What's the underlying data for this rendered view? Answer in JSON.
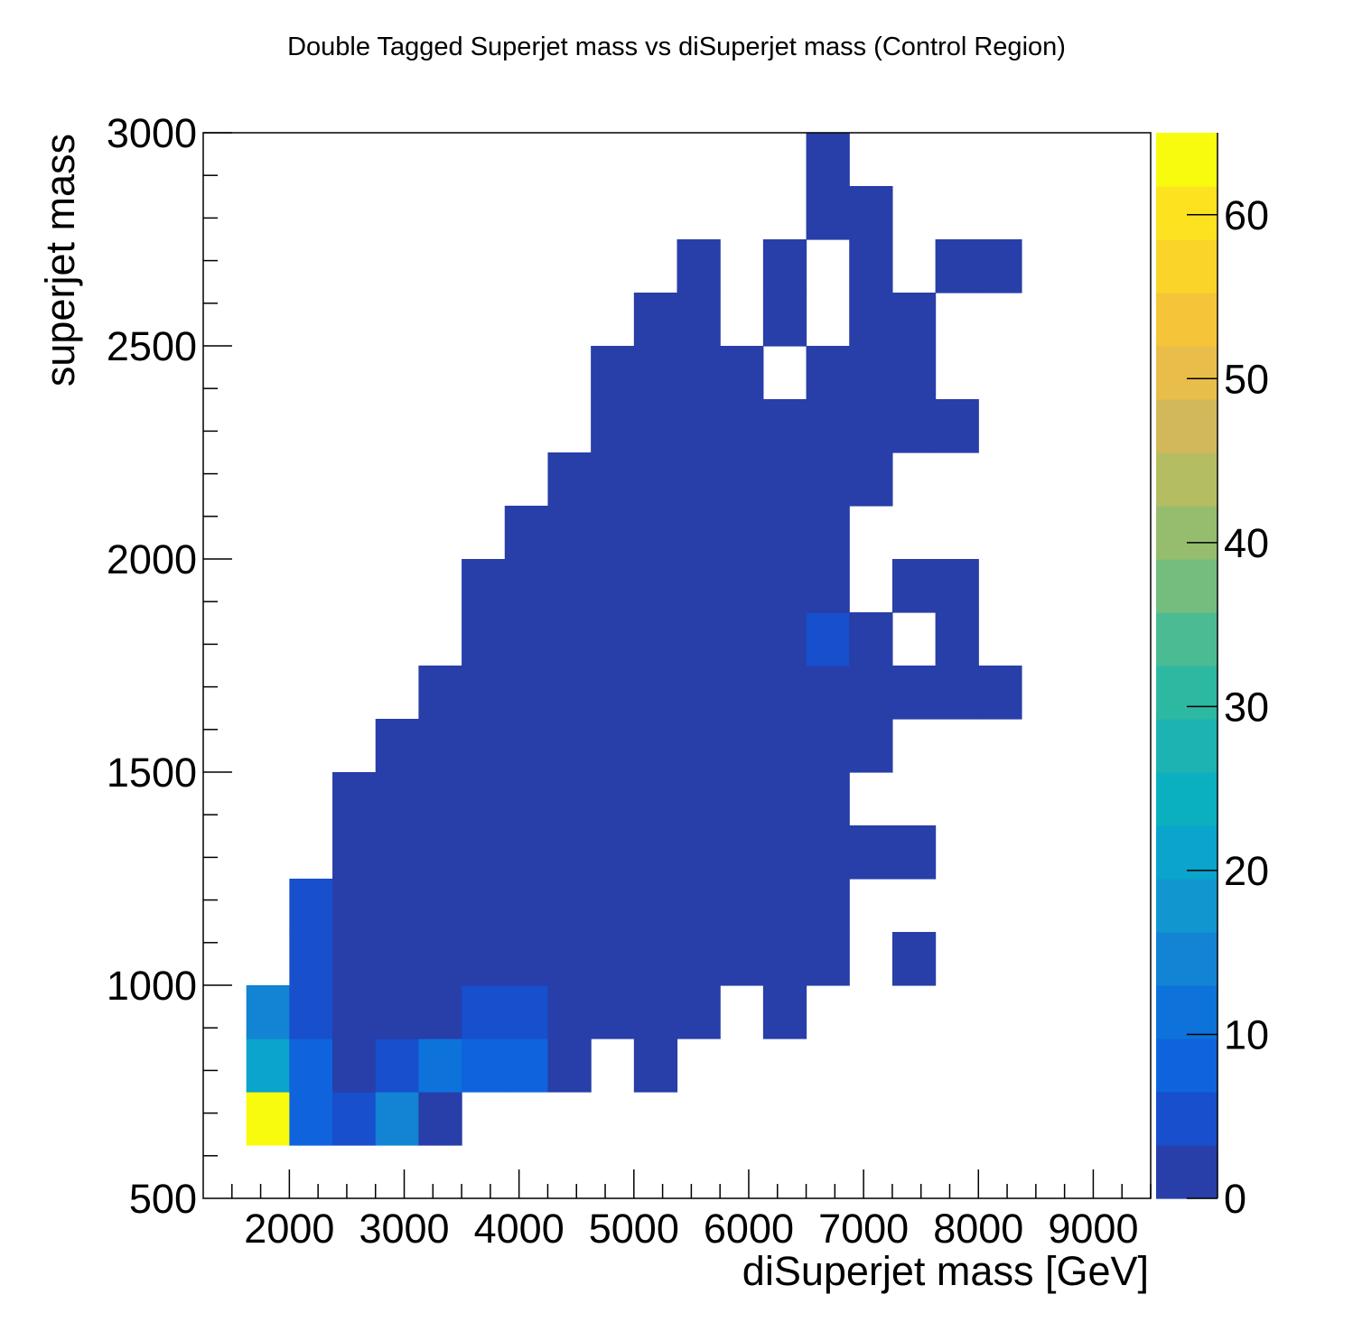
{
  "chart_data": {
    "type": "heatmap",
    "title": "Double Tagged Superjet mass vs diSuperjet mass (Control Region)",
    "xlabel": "diSuperjet mass [GeV]",
    "ylabel": "superjet mass",
    "xlim": [
      1250,
      9500
    ],
    "ylim": [
      500,
      3000
    ],
    "zlim": [
      0,
      65
    ],
    "x_ticks": [
      2000,
      3000,
      4000,
      5000,
      6000,
      7000,
      8000,
      9000
    ],
    "y_ticks": [
      500,
      1000,
      1500,
      2000,
      2500,
      3000
    ],
    "z_ticks": [
      0,
      10,
      20,
      30,
      40,
      50,
      60
    ],
    "x_tick_labels": [
      "2000",
      "3000",
      "4000",
      "5000",
      "6000",
      "7000",
      "8000",
      "9000"
    ],
    "y_tick_labels": [
      "500",
      "1000",
      "1500",
      "2000",
      "2500",
      "3000"
    ],
    "z_tick_labels": [
      "0",
      "10",
      "20",
      "30",
      "40",
      "50",
      "60"
    ],
    "x_bin_start": 1250,
    "x_bin_width": 375,
    "y_bin_start": 500,
    "y_bin_width": 125,
    "cells": [
      [
        1,
        1,
        65
      ],
      [
        2,
        1,
        9
      ],
      [
        3,
        1,
        6
      ],
      [
        4,
        1,
        15
      ],
      [
        5,
        1,
        1
      ],
      [
        1,
        2,
        22
      ],
      [
        2,
        2,
        9
      ],
      [
        3,
        2,
        2
      ],
      [
        4,
        2,
        6
      ],
      [
        5,
        2,
        10
      ],
      [
        6,
        2,
        7
      ],
      [
        7,
        2,
        7
      ],
      [
        8,
        2,
        2
      ],
      [
        10,
        2,
        2
      ],
      [
        1,
        3,
        13
      ],
      [
        2,
        3,
        6
      ],
      [
        3,
        3,
        2
      ],
      [
        4,
        3,
        2
      ],
      [
        5,
        3,
        2
      ],
      [
        6,
        3,
        6
      ],
      [
        7,
        3,
        6
      ],
      [
        8,
        3,
        2
      ],
      [
        9,
        3,
        2
      ],
      [
        10,
        3,
        2
      ],
      [
        11,
        3,
        2
      ],
      [
        13,
        3,
        2
      ],
      [
        2,
        4,
        6
      ],
      [
        3,
        4,
        2
      ],
      [
        4,
        4,
        2
      ],
      [
        5,
        4,
        2
      ],
      [
        6,
        4,
        2
      ],
      [
        7,
        4,
        2
      ],
      [
        8,
        4,
        2
      ],
      [
        9,
        4,
        2
      ],
      [
        10,
        4,
        2
      ],
      [
        11,
        4,
        2
      ],
      [
        12,
        4,
        2
      ],
      [
        13,
        4,
        2
      ],
      [
        14,
        4,
        2
      ],
      [
        16,
        4,
        2
      ],
      [
        2,
        5,
        6
      ],
      [
        3,
        5,
        2
      ],
      [
        4,
        5,
        2
      ],
      [
        5,
        5,
        2
      ],
      [
        6,
        5,
        2
      ],
      [
        7,
        5,
        2
      ],
      [
        8,
        5,
        2
      ],
      [
        9,
        5,
        2
      ],
      [
        10,
        5,
        2
      ],
      [
        11,
        5,
        2
      ],
      [
        12,
        5,
        2
      ],
      [
        13,
        5,
        2
      ],
      [
        14,
        5,
        2
      ],
      [
        3,
        6,
        2
      ],
      [
        4,
        6,
        2
      ],
      [
        5,
        6,
        2
      ],
      [
        6,
        6,
        2
      ],
      [
        7,
        6,
        2
      ],
      [
        8,
        6,
        2
      ],
      [
        9,
        6,
        2
      ],
      [
        10,
        6,
        2
      ],
      [
        11,
        6,
        2
      ],
      [
        12,
        6,
        2
      ],
      [
        13,
        6,
        2
      ],
      [
        14,
        6,
        2
      ],
      [
        15,
        6,
        2
      ],
      [
        16,
        6,
        2
      ],
      [
        3,
        7,
        2
      ],
      [
        4,
        7,
        2
      ],
      [
        5,
        7,
        2
      ],
      [
        6,
        7,
        2
      ],
      [
        7,
        7,
        2
      ],
      [
        8,
        7,
        2
      ],
      [
        9,
        7,
        2
      ],
      [
        10,
        7,
        2
      ],
      [
        11,
        7,
        2
      ],
      [
        12,
        7,
        2
      ],
      [
        13,
        7,
        2
      ],
      [
        14,
        7,
        2
      ],
      [
        4,
        8,
        2
      ],
      [
        5,
        8,
        2
      ],
      [
        6,
        8,
        2
      ],
      [
        7,
        8,
        2
      ],
      [
        8,
        8,
        2
      ],
      [
        9,
        8,
        2
      ],
      [
        10,
        8,
        2
      ],
      [
        11,
        8,
        2
      ],
      [
        12,
        8,
        2
      ],
      [
        13,
        8,
        2
      ],
      [
        14,
        8,
        2
      ],
      [
        15,
        8,
        2
      ],
      [
        5,
        9,
        2
      ],
      [
        6,
        9,
        2
      ],
      [
        7,
        9,
        2
      ],
      [
        8,
        9,
        2
      ],
      [
        9,
        9,
        2
      ],
      [
        10,
        9,
        2
      ],
      [
        11,
        9,
        2
      ],
      [
        12,
        9,
        2
      ],
      [
        13,
        9,
        2
      ],
      [
        14,
        9,
        2
      ],
      [
        15,
        9,
        2
      ],
      [
        16,
        9,
        2
      ],
      [
        17,
        9,
        2
      ],
      [
        18,
        9,
        2
      ],
      [
        6,
        10,
        2
      ],
      [
        7,
        10,
        2
      ],
      [
        8,
        10,
        2
      ],
      [
        9,
        10,
        2
      ],
      [
        10,
        10,
        2
      ],
      [
        11,
        10,
        2
      ],
      [
        12,
        10,
        2
      ],
      [
        13,
        10,
        2
      ],
      [
        14,
        10,
        6
      ],
      [
        15,
        10,
        2
      ],
      [
        17,
        10,
        2
      ],
      [
        6,
        11,
        2
      ],
      [
        7,
        11,
        2
      ],
      [
        8,
        11,
        2
      ],
      [
        9,
        11,
        2
      ],
      [
        10,
        11,
        2
      ],
      [
        11,
        11,
        2
      ],
      [
        12,
        11,
        2
      ],
      [
        13,
        11,
        2
      ],
      [
        14,
        11,
        2
      ],
      [
        16,
        11,
        2
      ],
      [
        17,
        11,
        2
      ],
      [
        7,
        12,
        2
      ],
      [
        8,
        12,
        2
      ],
      [
        9,
        12,
        2
      ],
      [
        10,
        12,
        2
      ],
      [
        11,
        12,
        2
      ],
      [
        12,
        12,
        2
      ],
      [
        13,
        12,
        2
      ],
      [
        14,
        12,
        2
      ],
      [
        8,
        13,
        2
      ],
      [
        9,
        13,
        2
      ],
      [
        10,
        13,
        2
      ],
      [
        11,
        13,
        2
      ],
      [
        12,
        13,
        2
      ],
      [
        13,
        13,
        2
      ],
      [
        14,
        13,
        2
      ],
      [
        15,
        13,
        2
      ],
      [
        9,
        14,
        2
      ],
      [
        10,
        14,
        2
      ],
      [
        11,
        14,
        2
      ],
      [
        12,
        14,
        2
      ],
      [
        13,
        14,
        2
      ],
      [
        14,
        14,
        2
      ],
      [
        15,
        14,
        2
      ],
      [
        16,
        14,
        2
      ],
      [
        17,
        14,
        2
      ],
      [
        9,
        15,
        2
      ],
      [
        10,
        15,
        2
      ],
      [
        11,
        15,
        2
      ],
      [
        12,
        15,
        2
      ],
      [
        14,
        15,
        2
      ],
      [
        15,
        15,
        2
      ],
      [
        16,
        15,
        2
      ],
      [
        10,
        16,
        2
      ],
      [
        11,
        16,
        2
      ],
      [
        13,
        16,
        2
      ],
      [
        15,
        16,
        2
      ],
      [
        16,
        16,
        2
      ],
      [
        11,
        17,
        2
      ],
      [
        13,
        17,
        2
      ],
      [
        15,
        17,
        2
      ],
      [
        17,
        17,
        2
      ],
      [
        18,
        17,
        2
      ],
      [
        14,
        18,
        2
      ],
      [
        15,
        18,
        2
      ],
      [
        14,
        19,
        2
      ]
    ],
    "palette": [
      "#283ea8",
      "#174fcc",
      "#0f63dd",
      "#0d72d9",
      "#1284d3",
      "#1196d0",
      "#0aa4cc",
      "#0ab0c0",
      "#1db3b2",
      "#2db8a2",
      "#4bbb93",
      "#74bd7f",
      "#96bd6e",
      "#b5bd63",
      "#d2b85a",
      "#e9bd4a",
      "#f5c438",
      "#fbd42a",
      "#fde21f",
      "#f9fb0e"
    ],
    "grid": false,
    "legend": "colorbar-right"
  }
}
